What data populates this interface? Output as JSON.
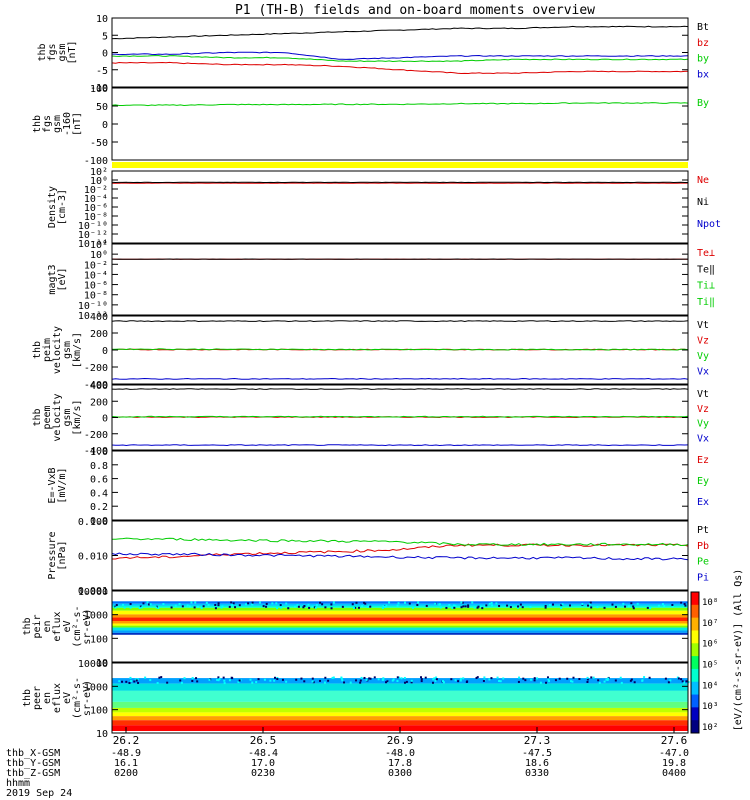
{
  "title": "P1 (TH-B) fields and on-board moments overview",
  "colors": {
    "black": "#000000",
    "red": "#dd0000",
    "green": "#00cc00",
    "blue": "#0000cc",
    "yellow": "#ffff00"
  },
  "chart_data": [
    {
      "type": "line",
      "panel": "fgs_gsm",
      "ylabel": [
        "thb",
        "fgs",
        "gsm",
        "[nT]"
      ],
      "ylim": [
        -10,
        10
      ],
      "yticks": [
        "10",
        "5",
        "0",
        "-5",
        "-10"
      ],
      "legend": [
        "Bt",
        "bz",
        "by",
        "bx"
      ],
      "series": [
        {
          "name": "Bt",
          "values": [
            4,
            4.5,
            5,
            5.5,
            6,
            6.5,
            7,
            7,
            7.5,
            7.5,
            7.5
          ]
        },
        {
          "name": "bz",
          "values": [
            -3,
            -3,
            -3.5,
            -3.5,
            -4,
            -5,
            -6,
            -6,
            -5.5,
            -5.5,
            -5.5
          ]
        },
        {
          "name": "by",
          "values": [
            -1,
            -1,
            -1.5,
            -1.5,
            -2.5,
            -2.5,
            -2.5,
            -2,
            -2,
            -2,
            -2
          ]
        },
        {
          "name": "bx",
          "values": [
            -0.5,
            -0.5,
            0,
            0,
            -2,
            -1.5,
            -1,
            -1,
            -1,
            -1,
            -1
          ]
        }
      ]
    },
    {
      "type": "line",
      "panel": "fgs_gsm_160",
      "ylabel": [
        "thb",
        "fgs",
        "gsm",
        "-160",
        "[nT]"
      ],
      "ylim": [
        -130,
        100
      ],
      "yticks": [
        "100",
        "50",
        "0",
        "-50",
        "-100"
      ],
      "legend": [
        "By"
      ],
      "series": [
        {
          "name": "By",
          "values": [
            45,
            45,
            47,
            47,
            48,
            48,
            50,
            50,
            52,
            52,
            52
          ]
        }
      ]
    },
    {
      "type": "line",
      "panel": "density",
      "ylabel": [
        "Density",
        "[cm-3]"
      ],
      "ylim": [
        -14,
        2
      ],
      "log": true,
      "yticks": [
        "10²",
        "10⁰",
        "10⁻²",
        "10⁻⁴",
        "10⁻⁶",
        "10⁻⁸",
        "10⁻¹⁰",
        "10⁻¹²",
        "10⁻¹⁴"
      ],
      "legend": [
        "Ne",
        "Ni",
        "Npot"
      ],
      "series": [
        {
          "name": "Ne",
          "values": [
            0.2,
            0.2,
            0.2,
            0.2,
            0.2,
            0.2,
            0.2,
            0.2,
            0.2,
            0.2,
            0.2
          ]
        },
        {
          "name": "Ni",
          "values": [
            0.3,
            0.3,
            0.3,
            0.3,
            0.3,
            0.3,
            0.3,
            0.3,
            0.3,
            0.3,
            0.3
          ]
        }
      ]
    },
    {
      "type": "line",
      "panel": "magt3",
      "ylabel": [
        "magt3",
        "[eV]"
      ],
      "ylim": [
        -13,
        4
      ],
      "log": true,
      "yticks": [
        "10²",
        "10⁰",
        "10⁻²",
        "10⁻⁴",
        "10⁻⁶",
        "10⁻⁸",
        "10⁻¹⁰",
        "10⁻¹²"
      ],
      "legend": [
        "Te⊥",
        "Te‖",
        "Ti⊥",
        "Ti‖"
      ],
      "series": [
        {
          "name": "Te⊥",
          "values": [
            2.3,
            2.3,
            2.3,
            2.3,
            2.3,
            2.3,
            2.3,
            2.3,
            2.3,
            2.3,
            2.3
          ]
        },
        {
          "name": "Te‖",
          "values": [
            2.35,
            2.35,
            2.35,
            2.35,
            2.35,
            2.35,
            2.35,
            2.35,
            2.35,
            2.35,
            2.35
          ]
        }
      ]
    },
    {
      "type": "line",
      "panel": "peim_velocity",
      "ylabel": [
        "thb",
        "peim",
        "velocity",
        "gsm",
        "[km/s]"
      ],
      "ylim": [
        -400,
        400
      ],
      "yticks": [
        "400",
        "200",
        "0",
        "-200",
        "-400"
      ],
      "legend": [
        "Vt",
        "Vz",
        "Vy",
        "Vx"
      ],
      "series": [
        {
          "name": "Vt",
          "values": [
            340,
            340,
            340,
            340,
            340,
            340,
            340,
            340,
            340,
            340,
            340
          ]
        },
        {
          "name": "Vz",
          "values": [
            5,
            5,
            5,
            5,
            5,
            5,
            5,
            5,
            5,
            5,
            5
          ]
        },
        {
          "name": "Vy",
          "values": [
            10,
            10,
            8,
            8,
            5,
            5,
            5,
            5,
            5,
            5,
            5
          ]
        },
        {
          "name": "Vx",
          "values": [
            -340,
            -340,
            -340,
            -340,
            -340,
            -340,
            -340,
            -340,
            -340,
            -340,
            -340
          ]
        }
      ]
    },
    {
      "type": "line",
      "panel": "peem_velocity",
      "ylabel": [
        "thb",
        "peem",
        "velocity",
        "gsm",
        "[km/s]"
      ],
      "ylim": [
        -400,
        400
      ],
      "yticks": [
        "400",
        "200",
        "0",
        "-200",
        "-400"
      ],
      "legend": [
        "Vt",
        "Vz",
        "Vy",
        "Vx"
      ],
      "series": [
        {
          "name": "Vt",
          "values": [
            350,
            350,
            350,
            350,
            350,
            350,
            350,
            350,
            350,
            350,
            350
          ]
        },
        {
          "name": "Vz",
          "values": [
            5,
            5,
            5,
            5,
            5,
            5,
            5,
            5,
            5,
            5,
            5
          ]
        },
        {
          "name": "Vy",
          "values": [
            10,
            10,
            10,
            10,
            10,
            10,
            10,
            10,
            10,
            10,
            10
          ]
        },
        {
          "name": "Vx",
          "values": [
            -340,
            -340,
            -340,
            -340,
            -340,
            -340,
            -340,
            -340,
            -340,
            -340,
            -340
          ]
        }
      ]
    },
    {
      "type": "line",
      "panel": "efield",
      "ylabel": [
        "E=-VxB",
        "[mV/m]"
      ],
      "ylim": [
        0,
        1
      ],
      "yticks": [
        "1.0",
        "0.8",
        "0.6",
        "0.4",
        "0.2",
        "0.0"
      ],
      "legend": [
        "Ez",
        "Ey",
        "Ex"
      ],
      "series": []
    },
    {
      "type": "line",
      "panel": "pressure",
      "ylabel": [
        "Pressure",
        "[nPa]"
      ],
      "ylim": [
        -3,
        -1
      ],
      "log": true,
      "yticks": [
        "0.100",
        "0.010",
        "0.001"
      ],
      "legend": [
        "Pt",
        "Pb",
        "Pe",
        "Pi"
      ],
      "series": [
        {
          "name": "Pb",
          "values": [
            0.0085,
            0.009,
            0.011,
            0.012,
            0.013,
            0.015,
            0.02,
            0.02,
            0.02,
            0.02,
            0.02
          ]
        },
        {
          "name": "Pe",
          "values": [
            0.03,
            0.03,
            0.028,
            0.027,
            0.026,
            0.025,
            0.021,
            0.021,
            0.021,
            0.021,
            0.021
          ]
        },
        {
          "name": "Pi",
          "values": [
            0.011,
            0.011,
            0.0105,
            0.01,
            0.0095,
            0.009,
            0.0085,
            0.0085,
            0.0085,
            0.008,
            0.008
          ]
        }
      ]
    },
    {
      "type": "heatmap",
      "panel": "peir_eflux",
      "ylabel": [
        "thb",
        "peir",
        "en",
        "eflux",
        "eV",
        "(cm²-s-",
        "sr-eV)"
      ],
      "ylim": [
        5,
        20000
      ],
      "log": true,
      "yticks": [
        "10000",
        "1000",
        "100",
        "10"
      ]
    },
    {
      "type": "heatmap",
      "panel": "peer_eflux",
      "ylabel": [
        "thb",
        "peer",
        "en",
        "eflux",
        "eV",
        "(cm²-s-",
        "sr-eV)"
      ],
      "ylim": [
        3,
        20000
      ],
      "log": true,
      "yticks": [
        "10000",
        "1000",
        "100",
        "10"
      ]
    }
  ],
  "colorbar": {
    "ticks": [
      "10⁸",
      "10⁷",
      "10⁶",
      "10⁵",
      "10⁴",
      "10³",
      "10²"
    ],
    "label": "[eV/(cm²-s-sr-eV)] (All Qs)"
  },
  "xaxis": {
    "labels": [
      "26.2",
      "26.5",
      "26.9",
      "27.3",
      "27.6"
    ],
    "rows": [
      {
        "name": "thb_X-GSM",
        "values": [
          "-48.9",
          "-48.4",
          "-48.0",
          "-47.5",
          "-47.0"
        ]
      },
      {
        "name": "thb_Y-GSM",
        "values": [
          "16.1",
          "17.0",
          "17.8",
          "18.6",
          "19.8"
        ]
      },
      {
        "name": "thb_Z-GSM",
        "values": [
          "0200",
          "0230",
          "0300",
          "0330",
          "0400"
        ]
      },
      {
        "name": "hhmm",
        "values": []
      }
    ],
    "date": "2019 Sep 24"
  }
}
